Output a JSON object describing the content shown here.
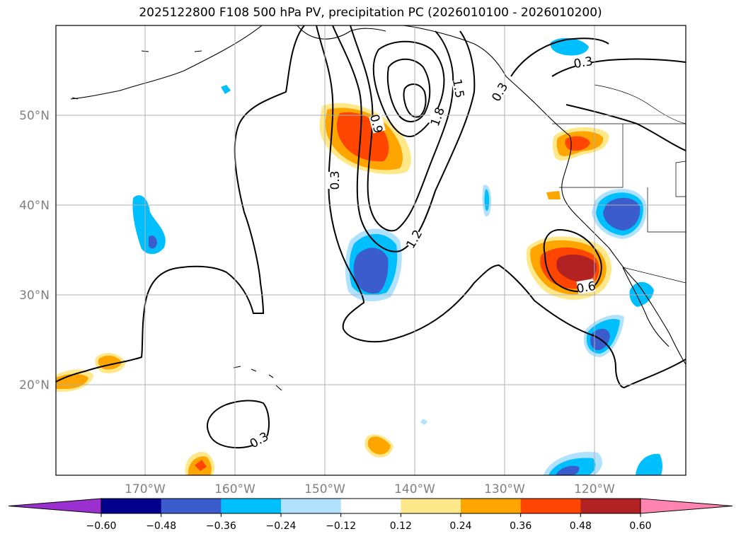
{
  "title": "2025122800 F108 500 hPa PV, precipitation PC (2026010100 - 2026010200)",
  "lat_labels": [
    "50°N",
    "40°N",
    "30°N",
    "20°N"
  ],
  "lon_labels": [
    "170°W",
    "160°W",
    "150°W",
    "140°W",
    "130°W",
    "120°W"
  ],
  "contour_labels": [
    "0.3",
    "0.9",
    "1.5",
    "1.8",
    "1.2",
    "0.3",
    "0.6",
    "0.3",
    "0.3"
  ],
  "colorbar": {
    "ticks": [
      "−0.60",
      "−0.48",
      "−0.36",
      "−0.24",
      "−0.12",
      "0.12",
      "0.24",
      "0.36",
      "0.48",
      "0.60"
    ],
    "colors": [
      "#9b30d0",
      "#00008b",
      "#3a5ccc",
      "#00bfff",
      "#b0e2ff",
      "#ffffff",
      "#ffe88a",
      "#ffa500",
      "#ff4500",
      "#b22222",
      "#ff85b0"
    ]
  },
  "colors": {
    "lat_lon_label": "#808080",
    "grid": "#b0b0b0",
    "contour": "#000000"
  }
}
